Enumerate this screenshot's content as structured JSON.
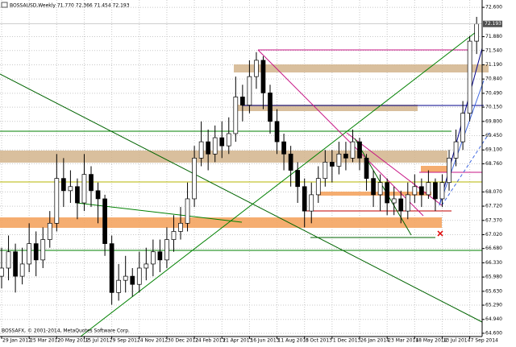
{
  "chart_data": {
    "type": "candlestick",
    "title": "BOSSAUSD,Weekly  71.770 72.366 71.454 72.193",
    "footer": "BOSSAFX, © 2001-2014, MetaQuotes Software Corp.",
    "x": [
      0,
      2,
      4,
      6,
      8,
      10,
      12,
      14,
      16,
      18,
      20,
      22,
      24,
      26,
      28,
      30,
      32,
      34,
      36,
      38,
      40,
      42,
      44,
      46,
      48,
      50,
      52,
      54,
      56,
      58,
      60,
      62,
      64,
      66,
      68,
      70,
      72,
      74,
      76,
      78,
      80,
      82,
      84,
      86,
      88,
      90,
      92,
      94,
      96,
      98,
      100,
      102,
      104,
      106,
      108,
      110,
      112,
      114,
      116,
      118,
      120,
      122,
      124,
      126,
      128,
      130,
      132,
      134,
      136,
      138
    ],
    "open": [
      66.0,
      66.2,
      66.6,
      66.0,
      66.3,
      66.8,
      66.4,
      66.9,
      67.3,
      68.4,
      68.1,
      68.2,
      67.8,
      68.5,
      68.1,
      67.9,
      66.8,
      65.6,
      65.9,
      66.0,
      65.8,
      66.2,
      66.3,
      66.6,
      66.4,
      66.9,
      67.1,
      67.3,
      67.9,
      68.9,
      69.3,
      69.0,
      69.4,
      69.2,
      69.5,
      70.4,
      70.2,
      70.9,
      71.3,
      70.5,
      69.8,
      69.3,
      69.0,
      68.6,
      68.2,
      67.6,
      68.0,
      68.4,
      68.8,
      68.7,
      69.0,
      68.9,
      69.3,
      68.9,
      68.4,
      68.0,
      68.3,
      67.8,
      67.9,
      67.6,
      68.0,
      68.2,
      68.0,
      68.3,
      67.9,
      68.3,
      68.9,
      69.3,
      70.0,
      71.77
    ],
    "high": [
      66.7,
      67.0,
      66.8,
      66.7,
      67.3,
      67.1,
      67.2,
      67.6,
      69.0,
      68.9,
      68.6,
      68.4,
      69.0,
      68.7,
      68.3,
      68.0,
      67.0,
      66.3,
      66.5,
      66.2,
      66.6,
      66.7,
      66.9,
      66.9,
      67.2,
      67.5,
      67.7,
      68.3,
      69.2,
      69.8,
      69.6,
      69.7,
      69.8,
      69.9,
      70.9,
      70.7,
      71.3,
      71.5,
      71.4,
      70.7,
      70.1,
      69.5,
      69.2,
      68.8,
      68.4,
      68.3,
      68.7,
      69.1,
      69.1,
      69.3,
      69.3,
      69.6,
      69.4,
      69.0,
      68.6,
      68.5,
      68.4,
      68.2,
      68.1,
      68.3,
      68.5,
      68.4,
      68.6,
      68.4,
      68.5,
      69.1,
      69.6,
      70.3,
      71.9,
      72.366
    ],
    "low": [
      65.7,
      65.9,
      65.6,
      65.8,
      66.1,
      66.0,
      66.2,
      66.7,
      67.1,
      67.7,
      67.8,
      67.4,
      67.6,
      67.7,
      67.3,
      66.5,
      65.3,
      65.4,
      65.6,
      65.5,
      65.6,
      65.9,
      66.0,
      66.1,
      66.2,
      66.6,
      66.9,
      67.1,
      67.7,
      68.7,
      68.6,
      68.8,
      68.9,
      69.0,
      69.3,
      69.8,
      70.0,
      70.6,
      70.1,
      69.5,
      69.0,
      68.6,
      68.2,
      67.8,
      67.2,
      67.3,
      67.8,
      68.2,
      68.3,
      68.5,
      68.6,
      68.8,
      68.6,
      68.1,
      67.7,
      67.6,
      67.5,
      67.5,
      67.3,
      67.4,
      67.8,
      67.7,
      67.9,
      67.6,
      67.7,
      68.1,
      68.7,
      69.1,
      69.8,
      71.454
    ],
    "close": [
      66.2,
      66.6,
      66.0,
      66.3,
      66.8,
      66.4,
      66.9,
      67.3,
      68.4,
      68.1,
      68.2,
      67.8,
      68.5,
      68.1,
      67.9,
      66.8,
      65.6,
      65.9,
      66.0,
      65.8,
      66.2,
      66.3,
      66.6,
      66.4,
      66.9,
      67.1,
      67.3,
      67.9,
      68.9,
      69.3,
      69.0,
      69.4,
      69.2,
      69.5,
      70.4,
      70.2,
      70.9,
      71.3,
      70.5,
      69.8,
      69.3,
      69.0,
      68.6,
      68.2,
      67.6,
      68.0,
      68.4,
      68.8,
      68.7,
      69.0,
      68.9,
      69.3,
      68.9,
      68.4,
      68.0,
      68.3,
      67.8,
      67.9,
      67.6,
      68.0,
      68.2,
      68.0,
      68.3,
      67.9,
      68.3,
      68.9,
      69.3,
      70.0,
      71.77,
      72.193
    ],
    "xlim": [
      -0.47,
      139.6
    ],
    "ylim": [
      64.52,
      72.78
    ],
    "xticks": [
      {
        "value": 0,
        "label": "29 Jan 2012"
      },
      {
        "value": 8,
        "label": "25 Mar 2012"
      },
      {
        "value": 16,
        "label": "20 May 2012"
      },
      {
        "value": 24,
        "label": "15 Jul 2012"
      },
      {
        "value": 32,
        "label": "9 Sep 2012"
      },
      {
        "value": 40,
        "label": "4 Nov 2012"
      },
      {
        "value": 48,
        "label": "30 Dec 2012"
      },
      {
        "value": 56,
        "label": "24 Feb 2013"
      },
      {
        "value": 64,
        "label": "21 Apr 2013"
      },
      {
        "value": 72,
        "label": "16 Jun 2013"
      },
      {
        "value": 80,
        "label": "11 Aug 2013"
      },
      {
        "value": 88,
        "label": "6 Oct 2013"
      },
      {
        "value": 96,
        "label": "1 Dec 2013"
      },
      {
        "value": 104,
        "label": "26 Jan 2014"
      },
      {
        "value": 112,
        "label": "23 Mar 2014"
      },
      {
        "value": 120,
        "label": "18 May 2014"
      },
      {
        "value": 128,
        "label": "13 Jul 2014"
      },
      {
        "value": 136,
        "label": "7 Sep 2014"
      }
    ],
    "yticks": [
      {
        "value": 72.6,
        "label": "72.600"
      },
      {
        "value": 71.88,
        "label": "71.880"
      },
      {
        "value": 71.54,
        "label": "71.540"
      },
      {
        "value": 71.19,
        "label": "71.190"
      },
      {
        "value": 70.84,
        "label": "70.840"
      },
      {
        "value": 70.49,
        "label": "70.490"
      },
      {
        "value": 70.15,
        "label": "70.150"
      },
      {
        "value": 69.8,
        "label": "69.800"
      },
      {
        "value": 69.45,
        "label": "69.450"
      },
      {
        "value": 69.1,
        "label": "69.100"
      },
      {
        "value": 68.76,
        "label": "68.760"
      },
      {
        "value": 68.07,
        "label": "68.070"
      },
      {
        "value": 67.72,
        "label": "67.720"
      },
      {
        "value": 67.37,
        "label": "67.370"
      },
      {
        "value": 67.02,
        "label": "67.020"
      },
      {
        "value": 66.68,
        "label": "66.680"
      },
      {
        "value": 66.33,
        "label": "66.330"
      },
      {
        "value": 65.98,
        "label": "65.980"
      },
      {
        "value": 65.63,
        "label": "65.630"
      },
      {
        "value": 65.29,
        "label": "65.290"
      },
      {
        "value": 64.94,
        "label": "64.940"
      },
      {
        "value": 64.6,
        "label": "64.600"
      }
    ],
    "last_price": {
      "value": 72.193,
      "label": "72.193"
    },
    "grid": true,
    "up_color": "#ffffff",
    "down_color": "#000000"
  }
}
